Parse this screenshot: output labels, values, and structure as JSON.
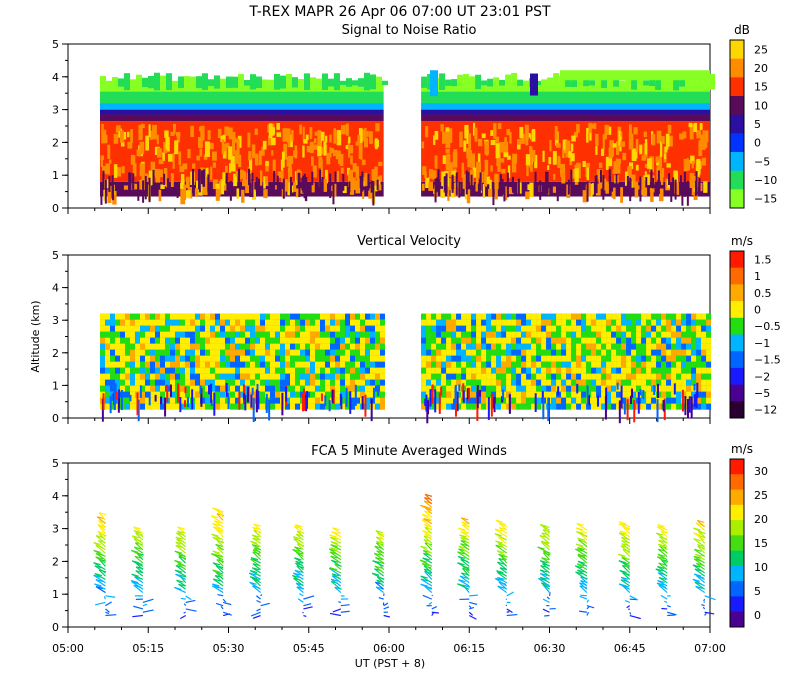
{
  "header": {
    "title": "T-REX  MAPR 26 Apr 06  07:00 UT  23:01  PST"
  },
  "chart_data": [
    {
      "type": "heatmap",
      "title": "Signal to Noise Ratio",
      "colorbar_unit": "dB",
      "colorbar_ticks": [
        "25",
        "20",
        "15",
        "10",
        "5",
        "0",
        "−5",
        "−10",
        "−15"
      ],
      "colorbar_colors": [
        "#ffd700",
        "#ff8c00",
        "#ff3000",
        "#5a0a5a",
        "#2a0fa0",
        "#0033ff",
        "#00b4ff",
        "#22dd55",
        "#88ff22"
      ],
      "xlim": [
        "05:00",
        "07:00"
      ],
      "ylim": [
        0,
        5
      ],
      "yticks": [
        "0",
        "1",
        "2",
        "3",
        "4",
        "5"
      ],
      "data_gap": [
        "05:59",
        "06:06"
      ],
      "layers": [
        {
          "bottom_km": 0.35,
          "top_km": 0.8,
          "value": 10
        },
        {
          "bottom_km": 0.8,
          "top_km": 2.65,
          "value": 15
        },
        {
          "bottom_km": 2.65,
          "top_km": 2.85,
          "value": 10
        },
        {
          "bottom_km": 2.85,
          "top_km": 3.0,
          "value": 5
        },
        {
          "bottom_km": 3.0,
          "top_km": 3.2,
          "value": -5
        },
        {
          "bottom_km": 3.2,
          "top_km": 3.55,
          "value": -10
        },
        {
          "bottom_km": 3.55,
          "top_km": 3.8,
          "value": -15
        }
      ]
    },
    {
      "type": "heatmap",
      "title": "Vertical Velocity",
      "ylabel": "Altitude (km)",
      "colorbar_unit": "m/s",
      "colorbar_ticks": [
        "1.5",
        "1",
        "0.5",
        "0",
        "−0.5",
        "−1",
        "−1.5",
        "−2",
        "−5",
        "−12"
      ],
      "colorbar_colors": [
        "#ff1a00",
        "#ff6a00",
        "#ffaa00",
        "#ffee00",
        "#22dd11",
        "#00b4ff",
        "#0066ff",
        "#1a1aff",
        "#4a0090",
        "#2a0030"
      ],
      "xlim": [
        "05:00",
        "07:00"
      ],
      "ylim": [
        0,
        5
      ],
      "yticks": [
        "0",
        "1",
        "2",
        "3",
        "4",
        "5"
      ],
      "data_gap": [
        "05:59",
        "06:06"
      ],
      "data_range_km": [
        0.35,
        3.2
      ]
    },
    {
      "type": "scatter",
      "title": "FCA 5 Minute Averaged Winds",
      "xlabel": "UT  (PST + 8)",
      "colorbar_unit": "m/s",
      "colorbar_ticks": [
        "30",
        "25",
        "20",
        "15",
        "10",
        "5",
        "0"
      ],
      "colorbar_colors": [
        "#ff1a00",
        "#ff6a00",
        "#ffaa00",
        "#ffee00",
        "#aaee00",
        "#44dd11",
        "#00cc66",
        "#00b4ff",
        "#0066ff",
        "#1a1aff",
        "#4a0090"
      ],
      "xlim": [
        "05:00",
        "07:00"
      ],
      "ylim": [
        0,
        5
      ],
      "xticks": [
        "05:00",
        "05:15",
        "05:30",
        "05:45",
        "06:00",
        "06:15",
        "06:30",
        "06:45",
        "07:00"
      ],
      "yticks": [
        "0",
        "1",
        "2",
        "3",
        "4",
        "5"
      ],
      "profile_times": [
        "05:07",
        "05:14",
        "05:22",
        "05:29",
        "05:36",
        "05:44",
        "05:51",
        "05:59",
        "06:08",
        "06:15",
        "06:22",
        "06:30",
        "06:37",
        "06:45",
        "06:52",
        "06:59"
      ],
      "profile_top_km": [
        3.3,
        2.95,
        2.9,
        3.55,
        3.05,
        3.05,
        2.9,
        2.8,
        3.95,
        3.25,
        3.1,
        3.0,
        3.0,
        3.1,
        3.0,
        3.1
      ]
    }
  ]
}
